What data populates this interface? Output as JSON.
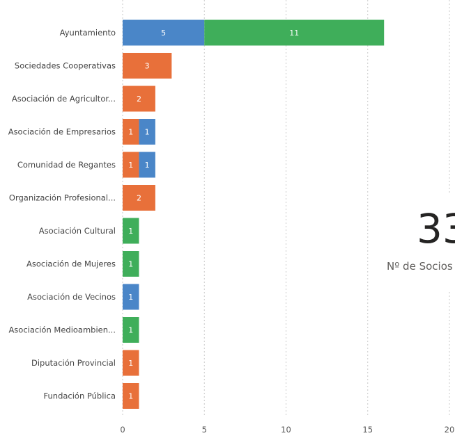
{
  "chart_data": {
    "type": "bar",
    "orientation": "horizontal",
    "stacked": true,
    "categories": [
      "Ayuntamiento",
      "Sociedades Cooperativas",
      "Asociación de Agricultor...",
      "Asociación de Empresarios",
      "Comunidad de Regantes",
      "Organización Profesional...",
      "Asociación Cultural",
      "Asociación de Mujeres",
      "Asociación de Vecinos",
      "Asociación Medioambien...",
      "Diputación Provincial",
      "Fundación Pública"
    ],
    "series": [
      {
        "color": "#E8703A",
        "values": [
          0,
          3,
          2,
          1,
          1,
          2,
          0,
          0,
          0,
          0,
          1,
          1
        ]
      },
      {
        "color": "#4A86C8",
        "values": [
          5,
          0,
          0,
          1,
          1,
          0,
          0,
          0,
          1,
          0,
          0,
          0
        ]
      },
      {
        "color": "#3FAE5A",
        "values": [
          11,
          0,
          0,
          0,
          0,
          0,
          1,
          1,
          0,
          1,
          0,
          0
        ]
      }
    ],
    "xticks": [
      0,
      5,
      10,
      15,
      20
    ],
    "xlim": [
      0,
      20
    ],
    "grid": "vertical-dashed"
  },
  "card": {
    "value": "33",
    "label": "Nº de Socios"
  }
}
